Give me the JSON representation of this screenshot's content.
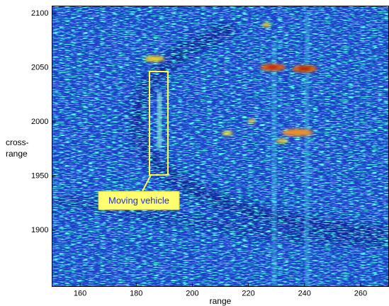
{
  "chart_data": {
    "type": "image",
    "xlabel": "range",
    "ylabel": "cross- range",
    "annotation": "Moving vehicle",
    "xlim": [
      150,
      270
    ],
    "xticks": [
      160,
      180,
      200,
      220,
      240,
      260
    ],
    "ylim": [
      1848,
      2107
    ],
    "yticks": [
      1900,
      1950,
      2000,
      2050,
      2100
    ]
  }
}
